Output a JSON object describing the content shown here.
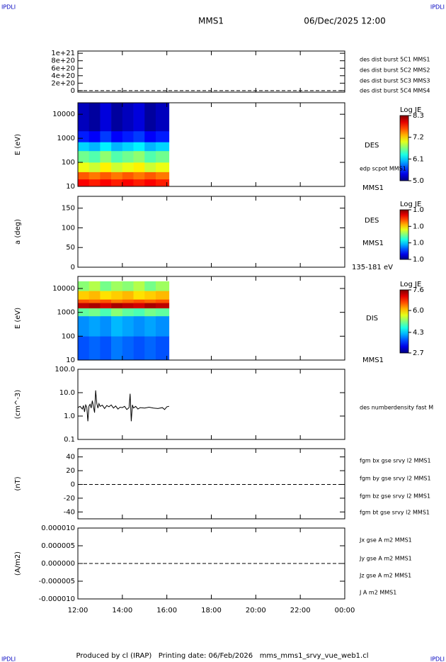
{
  "header": {
    "left_tag": "IPDLI",
    "right_tag": "IPDLI",
    "title": "MMS1",
    "date": "06/Dec/2025 12:00"
  },
  "footer": {
    "text": "Produced by cl (IRAP)   Printing date: 06/Feb/2026   mms_mms1_srvy_vue_web1.cl",
    "left_tag": "IPDLI",
    "right_tag": "IPDLI"
  },
  "chart_data": [
    {
      "type": "line",
      "ylim": [
        -4e+19,
        1.06e+21
      ],
      "yticks": [
        0,
        {
          "value": 2e+20,
          "label": "2e+20"
        },
        {
          "value": 4e+20,
          "label": "4e+20"
        },
        {
          "value": 6e+20,
          "label": "6e+20"
        },
        {
          "value": 8e+20,
          "label": "8e+20"
        },
        {
          "value": 1e+21,
          "label": "1e+21"
        }
      ],
      "zero_line": true,
      "series": [
        {
          "name": "des dist burst 5C1 MMS1",
          "color": "#0000ff"
        },
        {
          "name": "des dist burst 5C2 MMS2",
          "color": "#e000e0"
        },
        {
          "name": "des dist burst 5C3 MMS3",
          "color": "#e00000"
        },
        {
          "name": "des dist burst 5C4 MMS4",
          "color": "#00c000"
        }
      ]
    },
    {
      "type": "heatmap",
      "ylabel": "E (eV)",
      "log": true,
      "ylim": [
        10,
        30000
      ],
      "yticks": [
        10,
        100,
        1000,
        10000
      ],
      "xbins": [
        12,
        12.5,
        13,
        13.5,
        14,
        14.5,
        15,
        15.5,
        16.1
      ],
      "ybins": [
        10,
        20,
        40,
        100,
        300,
        700,
        2000,
        30000
      ],
      "values": [
        [
          7.9,
          7.8,
          7.9,
          7.8,
          7.9,
          7.8,
          7.9,
          7.8
        ],
        [
          7.6,
          7.5,
          7.6,
          7.5,
          7.6,
          7.5,
          7.6,
          7.5
        ],
        [
          7.0,
          6.9,
          7.1,
          6.9,
          7.0,
          7.1,
          6.9,
          7.0
        ],
        [
          6.6,
          6.5,
          6.7,
          6.5,
          6.6,
          6.7,
          6.5,
          6.6
        ],
        [
          6.1,
          6.0,
          6.2,
          6.0,
          6.1,
          6.2,
          6.0,
          6.1
        ],
        [
          5.5,
          5.4,
          5.6,
          5.4,
          5.5,
          5.6,
          5.4,
          5.5
        ],
        [
          5.2,
          5.1,
          5.3,
          5.1,
          5.2,
          5.3,
          5.1,
          5.2
        ]
      ],
      "colorbar": {
        "title": "Log JE",
        "zlim": [
          5,
          8.3
        ],
        "zticks": [
          8.3,
          7.2,
          6.1,
          {
            "value": 5,
            "label": "5.0"
          }
        ]
      },
      "labels": [
        "DES",
        "edp scpot MMS1",
        "MMS1"
      ]
    },
    {
      "type": "heatmap",
      "ylabel": "a (deg)",
      "ylim": [
        0,
        180
      ],
      "yticks": [
        0,
        50,
        100,
        150
      ],
      "colorbar": {
        "title": "Log JE",
        "zlim": [
          1,
          1.03
        ],
        "zticks": [
          {
            "value": 1.03,
            "label": "1.0"
          },
          {
            "value": 1.02,
            "label": "1.0"
          },
          {
            "value": 1.01,
            "label": "1.0"
          },
          {
            "value": 1,
            "label": "1.0"
          }
        ]
      },
      "labels": [
        "DES",
        "MMS1",
        "135-181 eV"
      ]
    },
    {
      "type": "heatmap",
      "ylabel": "E (eV)",
      "log": true,
      "ylim": [
        10,
        32000
      ],
      "yticks": [
        10,
        100,
        1000,
        10000
      ],
      "xbins": [
        12,
        12.5,
        13,
        13.5,
        14,
        14.5,
        15,
        15.5,
        16.1
      ],
      "ybins": [
        10,
        100,
        700,
        1500,
        2500,
        3500,
        8000,
        20000
      ],
      "values": [
        [
          3.7,
          3.8,
          3.7,
          3.9,
          3.8,
          3.7,
          3.8,
          3.7
        ],
        [
          4.0,
          4.1,
          4.0,
          4.2,
          4.1,
          4.0,
          4.1,
          4.0
        ],
        [
          5.0,
          5.1,
          4.9,
          5.2,
          5.0,
          4.9,
          5.1,
          5.0
        ],
        [
          7.3,
          7.4,
          7.2,
          7.4,
          7.3,
          7.2,
          7.4,
          7.3
        ],
        [
          6.6,
          6.5,
          6.6,
          6.4,
          6.5,
          6.6,
          6.5,
          6.6
        ],
        [
          6.0,
          6.1,
          5.9,
          6.0,
          6.1,
          5.9,
          6.0,
          6.1
        ],
        [
          5.2,
          5.4,
          5.1,
          5.3,
          5.2,
          5.4,
          5.1,
          5.3
        ]
      ],
      "colorbar": {
        "title": "Log JE",
        "zlim": [
          2.7,
          7.6
        ],
        "zticks": [
          7.6,
          {
            "value": 6,
            "label": "6.0"
          },
          4.3,
          2.7
        ]
      },
      "labels": [
        "DIS",
        "MMS1"
      ]
    },
    {
      "type": "line",
      "ylabel": "(cm^-3)",
      "log": true,
      "ylim": [
        0.1,
        100
      ],
      "yticks": [
        0.1,
        {
          "value": 1,
          "label": "1.0"
        },
        {
          "value": 10,
          "label": "10.0"
        },
        {
          "value": 100,
          "label": "100.0"
        }
      ],
      "x": [
        12.0,
        12.1,
        12.2,
        12.25,
        12.3,
        12.35,
        12.4,
        12.45,
        12.5,
        12.55,
        12.6,
        12.65,
        12.7,
        12.75,
        12.8,
        12.85,
        12.9,
        12.95,
        13.0,
        13.1,
        13.2,
        13.3,
        13.4,
        13.5,
        13.6,
        13.7,
        13.8,
        13.9,
        14.0,
        14.1,
        14.2,
        14.3,
        14.35,
        14.4,
        14.45,
        14.5,
        14.6,
        14.7,
        14.8,
        15.0,
        15.2,
        15.4,
        15.6,
        15.8,
        15.9,
        16.0,
        16.1
      ],
      "series": [
        {
          "name": "des numberdensity fast M",
          "color": "#000000",
          "values": [
            2.3,
            2.6,
            2.0,
            2.8,
            1.5,
            3.0,
            2.4,
            0.6,
            2.7,
            3.2,
            2.2,
            4.5,
            2.5,
            1.4,
            12.5,
            3.5,
            2.2,
            3.4,
            2.6,
            2.9,
            2.1,
            2.8,
            2.5,
            3.0,
            2.2,
            2.7,
            2.0,
            2.4,
            2.3,
            2.6,
            1.9,
            2.3,
            9.0,
            0.6,
            3.0,
            2.2,
            2.6,
            2.0,
            2.3,
            2.2,
            2.4,
            2.2,
            2.1,
            2.3,
            1.9,
            2.5,
            2.6
          ]
        }
      ]
    },
    {
      "type": "line",
      "ylabel": "(nT)",
      "ylim": [
        -50,
        52
      ],
      "yticks": [
        -40,
        -20,
        0,
        20,
        40
      ],
      "zero_line": true,
      "series": [
        {
          "name": "fgm bx gse srvy l2 MMS1",
          "color": "#e00000"
        },
        {
          "name": "fgm by gse srvy l2 MMS1",
          "color": "#00c000"
        },
        {
          "name": "fgm bz gse srvy l2 MMS1",
          "color": "#0000e0"
        },
        {
          "name": "fgm bt gse srvy l2 MMS1",
          "color": "#000000"
        }
      ]
    },
    {
      "type": "line",
      "ylabel": "(A/m2)",
      "ylim": [
        -1e-05,
        1e-05
      ],
      "yticks": [
        {
          "value": -1e-05,
          "label": "-0.000010"
        },
        -5e-06,
        {
          "value": 0,
          "label": "0.000000"
        },
        5e-06,
        {
          "value": 1e-05,
          "label": "0.000010"
        }
      ],
      "zero_line": true,
      "series": [
        {
          "name": "Jx gse A m2 MMS1",
          "color": "#e00000"
        },
        {
          "name": "Jy gse A m2 MMS1",
          "color": "#00c000"
        },
        {
          "name": "Jz gse A m2 MMS1",
          "color": "#0000e0"
        },
        {
          "name": "J A m2 MMS1",
          "color": "#000000"
        }
      ],
      "xlim": [
        12,
        24
      ],
      "xticks": [
        {
          "value": 12,
          "label": "12:00"
        },
        {
          "value": 14,
          "label": "14:00"
        },
        {
          "value": 16,
          "label": "16:00"
        },
        {
          "value": 18,
          "label": "18:00"
        },
        {
          "value": 20,
          "label": "20:00"
        },
        {
          "value": 22,
          "label": "22:00"
        },
        {
          "value": 24,
          "label": "00:00"
        }
      ]
    }
  ]
}
